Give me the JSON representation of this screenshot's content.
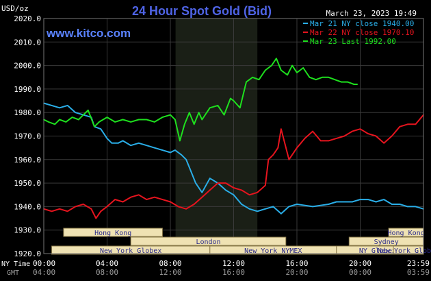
{
  "title": "24 Hour Spot Gold (Bid)",
  "units": "USD/oz",
  "timestamp": "March 23, 2023 19:49",
  "watermark": "www.kitco.com",
  "colors": {
    "background": "#000000",
    "grid": "#3a3a3a",
    "nymex_shade": "#1a1f16",
    "mar21": "#2aaee8",
    "mar22": "#e6141e",
    "mar23": "#1ee01e",
    "title": "#4f64e6",
    "watermark": "#5a82ff",
    "session_fill": "#efe2b3",
    "session_text": "#2a2a8a"
  },
  "sessions": [
    {
      "name": "Hong Kong",
      "row": 0
    },
    {
      "name": "London",
      "row": 1
    },
    {
      "name": "New York Globex",
      "row": 2
    },
    {
      "name": "New York NYMEX",
      "row": 2
    },
    {
      "name": "NY Globex",
      "row": 2
    },
    {
      "name": "Hong Kong",
      "row": 0
    },
    {
      "name": "Sydney",
      "row": 1
    },
    {
      "name": "New York Globex",
      "row": 2
    }
  ],
  "x_axis": {
    "ny_label": "NY Time",
    "gmt_label": "GMT",
    "ny_ticks": [
      "00:00",
      "04:00",
      "08:00",
      "12:00",
      "16:00",
      "20:00",
      "23:59"
    ],
    "gmt_ticks": [
      "04:00",
      "08:00",
      "12:00",
      "16:00",
      "20:00",
      "00:00",
      "03:59"
    ]
  },
  "chart_data": {
    "type": "line",
    "title": "24 Hour Spot Gold (Bid)",
    "ylabel": "USD/oz",
    "ylim": [
      1920,
      2020
    ],
    "yticks": [
      1920,
      1930,
      1940,
      1950,
      1960,
      1970,
      1980,
      1990,
      2000,
      2010,
      2020
    ],
    "ytick_labels": [
      "1920.0",
      "1930.0",
      "1940.0",
      "1950.0",
      "1960.0",
      "1970.0",
      "1980.0",
      "1990.0",
      "2000.0",
      "2010.0",
      "2020.0"
    ],
    "xlim": [
      0,
      24
    ],
    "grid": true,
    "legend_position": "top-right",
    "series": [
      {
        "name": "Mar 21 NY close 1940.00",
        "color": "#2aaee8",
        "x": [
          0,
          0.5,
          1,
          1.5,
          2,
          2.5,
          3,
          3.2,
          3.6,
          4,
          4.3,
          4.7,
          5,
          5.5,
          6,
          6.5,
          7,
          7.5,
          8,
          8.3,
          8.7,
          9,
          9.3,
          9.6,
          10,
          10.5,
          11,
          11.5,
          12,
          12.5,
          13,
          13.5,
          14,
          14.5,
          15,
          15.5,
          16,
          17,
          18,
          18.5,
          19,
          19.5,
          20,
          20.5,
          21,
          21.5,
          22,
          22.5,
          23,
          23.5,
          24
        ],
        "y": [
          1984,
          1983,
          1982,
          1983,
          1980,
          1979,
          1978,
          1974,
          1973,
          1969,
          1967,
          1967,
          1968,
          1966,
          1967,
          1966,
          1965,
          1964,
          1963,
          1964,
          1962,
          1960,
          1955,
          1950,
          1946,
          1952,
          1950,
          1947,
          1945,
          1941,
          1939,
          1938,
          1939,
          1940,
          1937,
          1940,
          1941,
          1940,
          1941,
          1942,
          1942,
          1942,
          1943,
          1943,
          1942,
          1943,
          1941,
          1941,
          1940,
          1940,
          1939
        ]
      },
      {
        "name": "Mar 22 NY close 1970.10",
        "color": "#e6141e",
        "x": [
          0,
          0.5,
          1,
          1.5,
          2,
          2.5,
          3,
          3.3,
          3.6,
          4,
          4.5,
          5,
          5.5,
          6,
          6.5,
          7,
          7.5,
          8,
          8.5,
          9,
          9.5,
          10,
          10.5,
          11,
          11.5,
          12,
          12.5,
          13,
          13.5,
          14,
          14.2,
          14.5,
          14.8,
          15,
          15.5,
          16,
          16.5,
          17,
          17.5,
          18,
          18.5,
          19,
          19.5,
          20,
          20.5,
          21,
          21.5,
          22,
          22.5,
          23,
          23.5,
          24
        ],
        "y": [
          1939,
          1938,
          1939,
          1938,
          1940,
          1941,
          1939,
          1935,
          1938,
          1940,
          1943,
          1942,
          1944,
          1945,
          1943,
          1944,
          1943,
          1942,
          1940,
          1939,
          1941,
          1944,
          1947,
          1950,
          1950,
          1948,
          1947,
          1945,
          1946,
          1949,
          1960,
          1962,
          1965,
          1973,
          1960,
          1965,
          1969,
          1972,
          1968,
          1968,
          1969,
          1970,
          1972,
          1973,
          1971,
          1970,
          1967,
          1970,
          1974,
          1975,
          1975,
          1979
        ]
      },
      {
        "name": "Mar 23 Last 1992.00",
        "color": "#1ee01e",
        "x": [
          0,
          0.3,
          0.7,
          1,
          1.4,
          1.8,
          2.2,
          2.5,
          2.8,
          3.2,
          3.5,
          4,
          4.5,
          5,
          5.5,
          6,
          6.5,
          7,
          7.5,
          8,
          8.3,
          8.6,
          8.9,
          9.2,
          9.5,
          9.8,
          10,
          10.5,
          11,
          11.4,
          11.8,
          12,
          12.4,
          12.8,
          13.2,
          13.6,
          14,
          14.4,
          14.7,
          15,
          15.4,
          15.7,
          16,
          16.4,
          16.8,
          17.2,
          17.6,
          18,
          18.4,
          18.8,
          19.2,
          19.6,
          19.82
        ],
        "y": [
          1977,
          1976,
          1975,
          1977,
          1976,
          1978,
          1977,
          1979,
          1981,
          1974,
          1976,
          1978,
          1976,
          1977,
          1976,
          1977,
          1977,
          1976,
          1978,
          1979,
          1977,
          1968,
          1975,
          1980,
          1975,
          1980,
          1977,
          1982,
          1983,
          1979,
          1986,
          1985,
          1982,
          1993,
          1995,
          1994,
          1998,
          2000,
          2003,
          1998,
          1996,
          2000,
          1997,
          1999,
          1995,
          1994,
          1995,
          1995,
          1994,
          1993,
          1993,
          1992,
          1992
        ]
      }
    ]
  }
}
